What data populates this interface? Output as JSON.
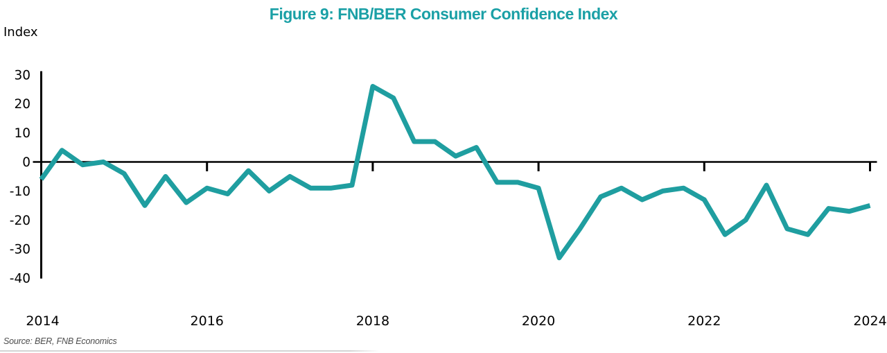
{
  "figure": {
    "title": "Figure 9: FNB/BER Consumer Confidence Index",
    "y_axis_unit": "Index",
    "source": "Source: BER, FNB Economics"
  },
  "colors": {
    "title_teal": "#1BA0A6",
    "line_teal": "#1F9EA0",
    "axis_black": "#000000",
    "tick_label_black": "#000000",
    "source_gray": "#4D4D4D",
    "divider_gray": "#D4D4D4"
  },
  "chart_data": {
    "type": "line",
    "title": "Figure 9: FNB/BER Consumer Confidence Index",
    "series_name": "FNB/BER Consumer Confidence Index",
    "frequency": "quarterly",
    "ylabel": "Index",
    "ylim": [
      -40,
      31
    ],
    "grid": false,
    "legend": false,
    "x": [
      "2014 Q1",
      "2014 Q2",
      "2014 Q3",
      "2014 Q4",
      "2015 Q1",
      "2015 Q2",
      "2015 Q3",
      "2015 Q4",
      "2016 Q1",
      "2016 Q2",
      "2016 Q3",
      "2016 Q4",
      "2017 Q1",
      "2017 Q2",
      "2017 Q3",
      "2017 Q4",
      "2018 Q1",
      "2018 Q2",
      "2018 Q3",
      "2018 Q4",
      "2019 Q1",
      "2019 Q2",
      "2019 Q3",
      "2019 Q4",
      "2020 Q1",
      "2020 Q2",
      "2020 Q3",
      "2020 Q4",
      "2021 Q1",
      "2021 Q2",
      "2021 Q3",
      "2021 Q4",
      "2022 Q1",
      "2022 Q2",
      "2022 Q3",
      "2022 Q4",
      "2023 Q1",
      "2023 Q2",
      "2023 Q3",
      "2023 Q4",
      "2024 Q1"
    ],
    "values": [
      -6,
      4,
      -1,
      0,
      -4,
      -15,
      -5,
      -14,
      -9,
      -11,
      -3,
      -10,
      -5,
      -9,
      -9,
      -8,
      26,
      22,
      7,
      7,
      2,
      5,
      -7,
      -7,
      -9,
      -33,
      -23,
      -12,
      -9,
      -13,
      -10,
      -9,
      -13,
      -25,
      -20,
      -8,
      -23,
      -25,
      -16,
      -17,
      -15
    ],
    "x_ticks": [
      {
        "label": "2014",
        "index": 0
      },
      {
        "label": "2016",
        "index": 8
      },
      {
        "label": "2018",
        "index": 16
      },
      {
        "label": "2020",
        "index": 24
      },
      {
        "label": "2022",
        "index": 32
      },
      {
        "label": "2024",
        "index": 40
      }
    ],
    "y_ticks": [
      30,
      20,
      10,
      0,
      -10,
      -20,
      -30,
      -40
    ]
  }
}
